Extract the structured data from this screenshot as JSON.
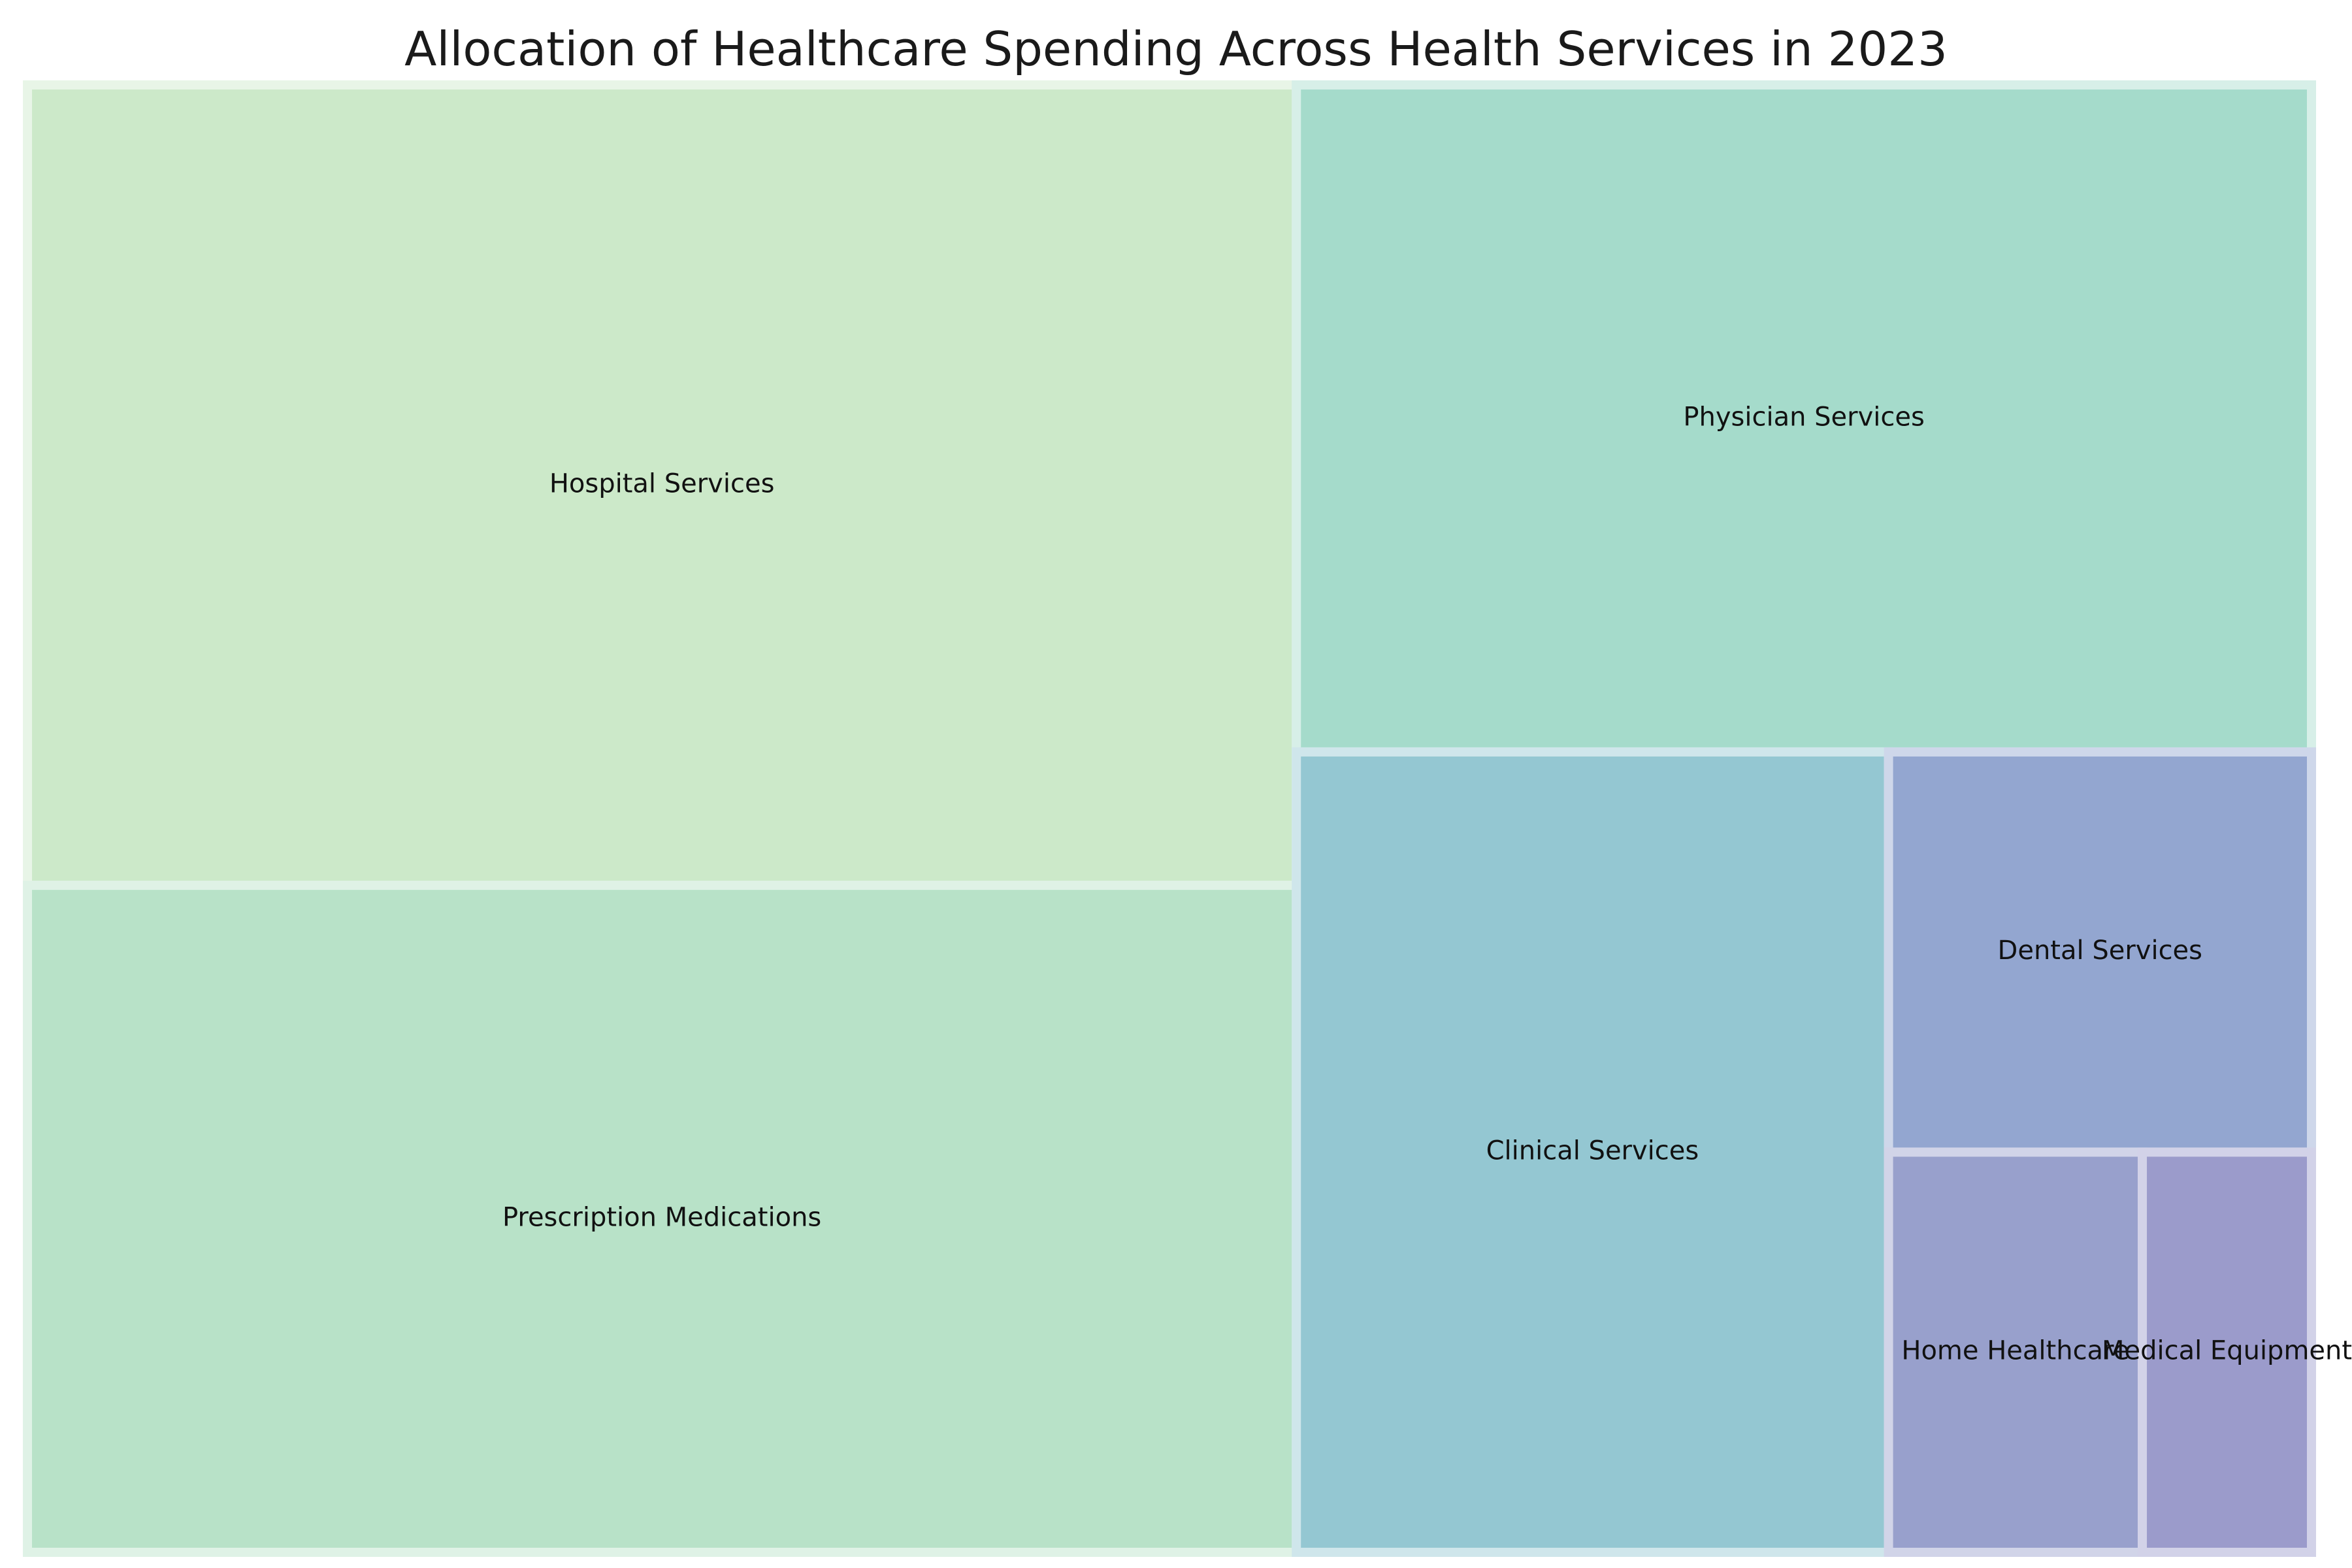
{
  "chart_data": {
    "type": "treemap",
    "title": "Allocation of Healthcare Spending Across Health Services in 2023",
    "layout": "squarified",
    "tiles": [
      {
        "label": "Hospital Services",
        "value": 30,
        "color": "#cce9c9"
      },
      {
        "label": "Prescription Medications",
        "value": 25,
        "color": "#b8e2c8"
      },
      {
        "label": "Physician Services",
        "value": 20,
        "color": "#a5dbcb"
      },
      {
        "label": "Clinical Services",
        "value": 14,
        "color": "#94c7d2"
      },
      {
        "label": "Dental Services",
        "value": 5,
        "color": "#93a6d0"
      },
      {
        "label": "Home Healthcare",
        "value": 3,
        "color": "#98a0cc"
      },
      {
        "label": "Medical Equipment",
        "value": 2,
        "color": "#9b9bcb"
      }
    ]
  }
}
